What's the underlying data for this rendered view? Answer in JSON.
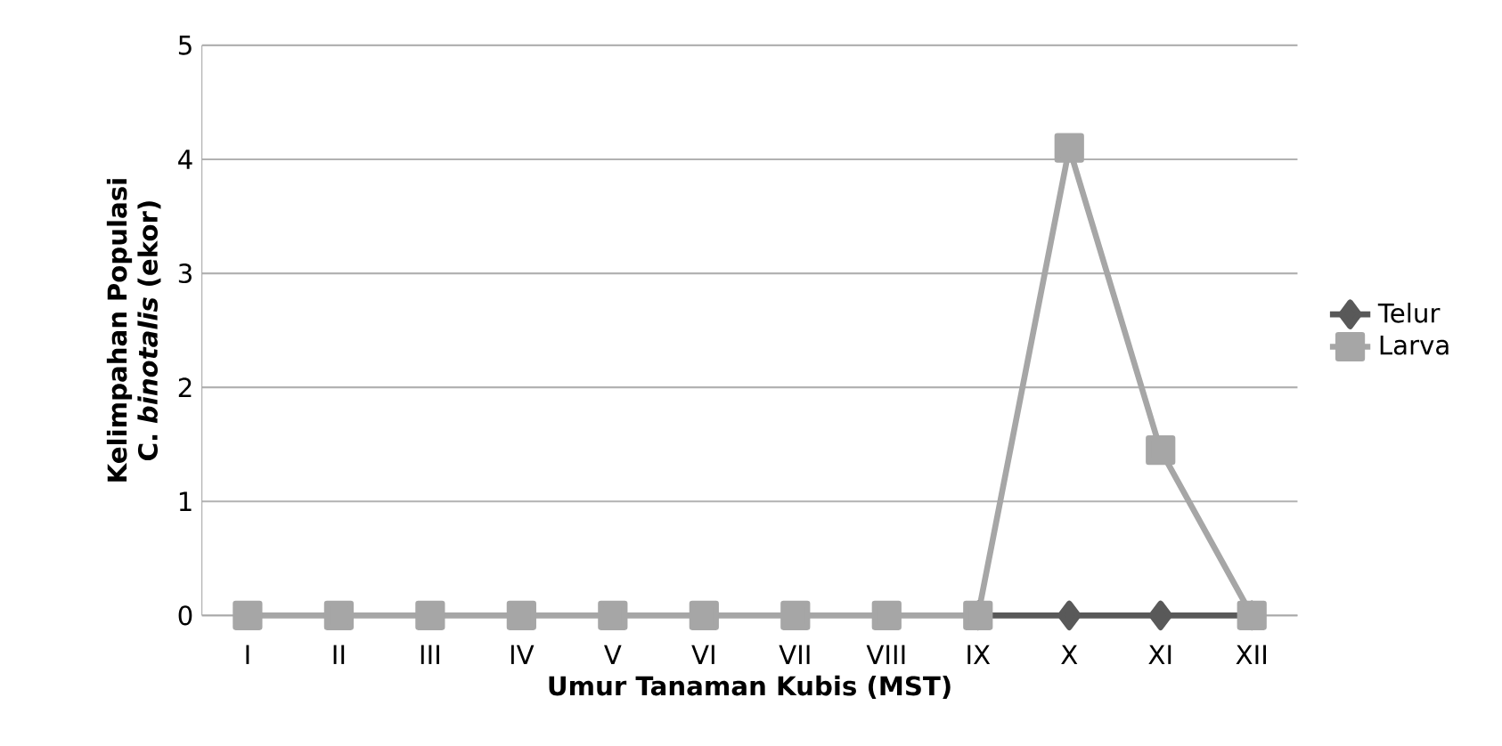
{
  "chart_data": {
    "type": "line",
    "xlabel": "Umur Tanaman Kubis (MST)",
    "ylabel": "Kelimpahan Populasi C. *binotalis* (ekor)",
    "categories": [
      "I",
      "II",
      "III",
      "IV",
      "V",
      "VI",
      "VII",
      "VIII",
      "IX",
      "X",
      "XI",
      "XII"
    ],
    "series": [
      {
        "name": "Telur",
        "color": "#595959",
        "marker": "diamond",
        "values": [
          null,
          null,
          null,
          null,
          null,
          null,
          null,
          null,
          0,
          0,
          0,
          0
        ]
      },
      {
        "name": "Larva",
        "color": "#a6a6a6",
        "marker": "square",
        "values": [
          0,
          0,
          0,
          0,
          0,
          0,
          0,
          0,
          0,
          4.1,
          1.45,
          0
        ]
      }
    ],
    "ylim": [
      0,
      5
    ],
    "yticks": [
      0,
      1,
      2,
      3,
      4,
      5
    ],
    "grid": "y",
    "legend": "right"
  }
}
